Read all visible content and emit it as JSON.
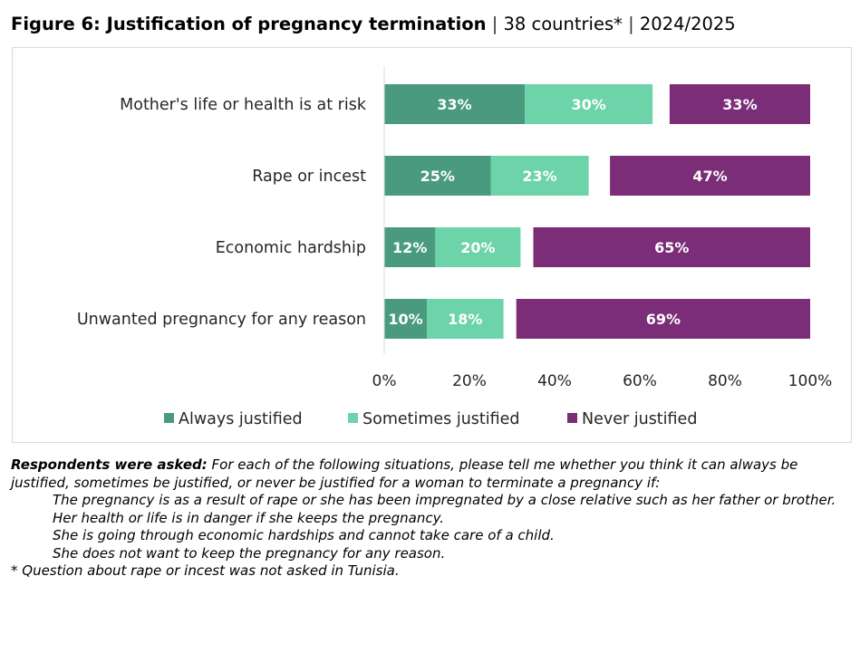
{
  "figure": {
    "title": "Figure 6: Justification of pregnancy termination",
    "separator": "|",
    "countries": "38 countries*",
    "period": "2024/2025"
  },
  "colors": {
    "always": "#4a9a80",
    "sometimes": "#6dd3a8",
    "never": "#7b2d78"
  },
  "chart_data": {
    "type": "bar",
    "orientation": "horizontal",
    "stacked": true,
    "categories": [
      "Mother's life or health is at risk",
      "Rape or incest",
      "Economic hardship",
      "Unwanted pregnancy for any reason"
    ],
    "series": [
      {
        "name": "Always justified",
        "values": [
          33,
          25,
          12,
          10
        ]
      },
      {
        "name": "Sometimes justified",
        "values": [
          30,
          23,
          20,
          18
        ]
      },
      {
        "name": "Never justified",
        "values": [
          33,
          47,
          65,
          69
        ]
      }
    ],
    "never_aligned_right": true,
    "xlim": [
      0,
      100
    ],
    "ticks": [
      "0%",
      "20%",
      "40%",
      "60%",
      "80%",
      "100%"
    ],
    "value_suffix": "%",
    "grid": false,
    "legend_position": "bottom"
  },
  "notes": {
    "question_label": "Respondents were asked:",
    "question_text": "For each of the following situations, please tell me whether you think it can always be justified, sometimes be justified, or never be justified for a woman to terminate a pregnancy if:",
    "items": [
      "The pregnancy is as a result of rape or she has been impregnated by a close relative such as her father or brother.",
      "Her health or life is in danger if she keeps the pregnancy.",
      "She is going through economic hardships and cannot take care of a child.",
      "She does not want to keep the pregnancy for any reason."
    ],
    "footnote": "* Question about rape or incest was not asked in Tunisia."
  }
}
